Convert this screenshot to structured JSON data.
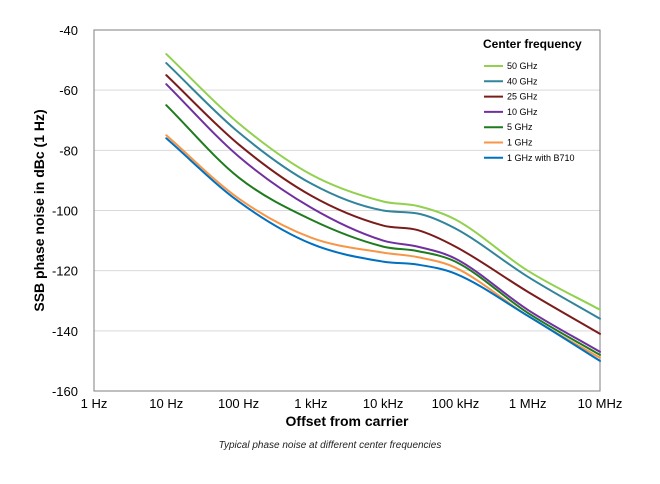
{
  "caption": "Typical phase noise at different center frequencies",
  "chart_data": {
    "type": "line",
    "xscale": "log",
    "xlabel": "Offset from carrier",
    "ylabel": "SSB phase noise in dBc (1 Hz)",
    "xlim": [
      1,
      10000000
    ],
    "ylim": [
      -160,
      -40
    ],
    "x_ticks": [
      1,
      10,
      100,
      1000,
      10000,
      100000,
      1000000,
      10000000
    ],
    "x_tick_labels": [
      "1 Hz",
      "10 Hz",
      "100 Hz",
      "1 kHz",
      "10 kHz",
      "100 kHz",
      "1 MHz",
      "10 MHz"
    ],
    "y_ticks": [
      -40,
      -60,
      -80,
      -100,
      -120,
      -140,
      -160
    ],
    "y_tick_labels": [
      "-40",
      "-60",
      "-80",
      "-100",
      "-120",
      "-140",
      "-160"
    ],
    "grid": "horizontal",
    "legend_title": "Center frequency",
    "legend_position": "top-right",
    "x": [
      10,
      100,
      1000,
      10000,
      30000,
      100000,
      1000000,
      10000000
    ],
    "series": [
      {
        "name": "50 GHz",
        "color": "#92D050",
        "values": [
          -48,
          -71,
          -88,
          -97,
          -98.5,
          -103,
          -120,
          -133
        ]
      },
      {
        "name": "40 GHz",
        "color": "#31849B",
        "values": [
          -51,
          -74,
          -91,
          -100,
          -101,
          -106,
          -122,
          -136
        ]
      },
      {
        "name": "25 GHz",
        "color": "#7B1C1C",
        "values": [
          -55,
          -78,
          -95,
          -105,
          -106.5,
          -112,
          -127,
          -141
        ]
      },
      {
        "name": "10 GHz",
        "color": "#7030A0",
        "values": [
          -58,
          -82,
          -99,
          -110,
          -112,
          -116,
          -133,
          -147
        ]
      },
      {
        "name": "5 GHz",
        "color": "#1E7B1E",
        "values": [
          -65,
          -89,
          -103,
          -112,
          -113.5,
          -117,
          -134,
          -148
        ]
      },
      {
        "name": "1 GHz",
        "color": "#F79646",
        "values": [
          -75,
          -96,
          -109,
          -114,
          -115.5,
          -119,
          -135,
          -149
        ]
      },
      {
        "name": "1 GHz with B710",
        "color": "#0070C0",
        "values": [
          -76,
          -97,
          -111,
          -117,
          -118,
          -121,
          -135,
          -150
        ]
      }
    ]
  }
}
